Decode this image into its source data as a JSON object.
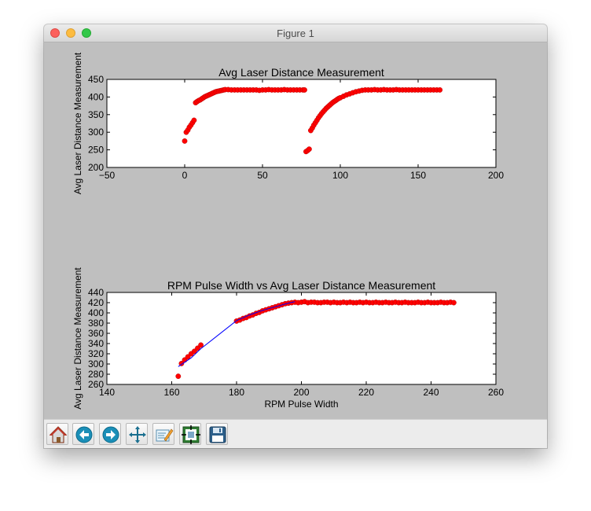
{
  "window": {
    "title": "Figure 1"
  },
  "toolbar": {
    "buttons": [
      {
        "name": "home-button",
        "icon": "home-icon"
      },
      {
        "name": "back-button",
        "icon": "back-arrow-icon"
      },
      {
        "name": "forward-button",
        "icon": "forward-arrow-icon"
      },
      {
        "name": "pan-button",
        "icon": "pan-move-icon"
      },
      {
        "name": "edit-curves-button",
        "icon": "edit-pencil-icon"
      },
      {
        "name": "configure-subplots-button",
        "icon": "subplots-icon"
      },
      {
        "name": "save-button",
        "icon": "floppy-disk-icon"
      }
    ]
  },
  "colors": {
    "scatter": "#ff0000",
    "line": "#0000ff",
    "figure_bg": "#bfbfbf",
    "axes_bg": "#ffffff"
  },
  "chart_data": [
    {
      "type": "scatter",
      "title": "Avg Laser Distance Measurement",
      "xlabel": "",
      "ylabel": "Avg Laser Distance Measurement",
      "xlim": [
        -50,
        200
      ],
      "ylim": [
        200,
        450
      ],
      "xticks": [
        -50,
        0,
        50,
        100,
        150,
        200
      ],
      "yticks": [
        200,
        250,
        300,
        350,
        400,
        450
      ],
      "xtick_labels": [
        "−50",
        "0",
        "50",
        "100",
        "150",
        "200"
      ],
      "ytick_labels": [
        "200",
        "250",
        "300",
        "350",
        "400",
        "450"
      ],
      "grid": false,
      "series": [
        {
          "name": "",
          "x": [
            0,
            1,
            2,
            3,
            4,
            5,
            6,
            7,
            8,
            9,
            10,
            11,
            12,
            13,
            14,
            15,
            16,
            17,
            18,
            19,
            20,
            21,
            22,
            23,
            24,
            25,
            26,
            28,
            30,
            32,
            34,
            36,
            38,
            40,
            42,
            44,
            46,
            48,
            50,
            52,
            54,
            56,
            58,
            60,
            62,
            64,
            66,
            68,
            70,
            72,
            74,
            76,
            77,
            78,
            79,
            80,
            81,
            82,
            83,
            84,
            85,
            86,
            87,
            88,
            89,
            90,
            91,
            92,
            93,
            94,
            95,
            96,
            97,
            98,
            99,
            100,
            102,
            104,
            106,
            108,
            110,
            112,
            114,
            116,
            118,
            120,
            122,
            124,
            126,
            128,
            130,
            132,
            134,
            136,
            138,
            140,
            142,
            144,
            146,
            148,
            150,
            152,
            154,
            156,
            158,
            160,
            162,
            164
          ],
          "y": [
            275,
            300,
            306,
            314,
            320,
            327,
            334,
            384,
            387,
            390,
            392,
            395,
            398,
            401,
            403,
            405,
            407,
            409,
            411,
            413,
            415,
            416,
            417,
            418,
            419,
            420,
            421,
            421,
            420,
            420,
            420,
            420,
            420,
            420,
            420,
            420,
            420,
            419,
            420,
            420,
            421,
            420,
            420,
            420,
            420,
            421,
            420,
            420,
            420,
            420,
            420,
            420,
            420,
            245,
            248,
            252,
            305,
            312,
            320,
            327,
            334,
            341,
            347,
            353,
            358,
            363,
            368,
            372,
            376,
            380,
            384,
            387,
            390,
            393,
            396,
            398,
            402,
            406,
            409,
            412,
            415,
            417,
            419,
            420,
            420,
            420,
            421,
            420,
            420,
            421,
            420,
            420,
            420,
            421,
            420,
            420,
            420,
            420,
            420,
            420,
            420,
            420,
            420,
            420,
            420,
            420,
            420,
            420
          ]
        }
      ]
    },
    {
      "type": "scatter",
      "title": "RPM Pulse Width vs Avg Laser Distance Measurement",
      "xlabel": "RPM Pulse Width",
      "ylabel": "Avg Laser Distance Measurement",
      "xlim": [
        140,
        260
      ],
      "ylim": [
        260,
        440
      ],
      "xticks": [
        140,
        160,
        180,
        200,
        220,
        240,
        260
      ],
      "yticks": [
        260,
        280,
        300,
        320,
        340,
        360,
        380,
        400,
        420,
        440
      ],
      "xtick_labels": [
        "140",
        "160",
        "180",
        "200",
        "220",
        "240",
        "260"
      ],
      "ytick_labels": [
        "260",
        "280",
        "300",
        "320",
        "340",
        "360",
        "380",
        "400",
        "420",
        "440"
      ],
      "grid": false,
      "series": [
        {
          "name": "",
          "x": [
            162,
            163,
            164,
            165,
            166,
            167,
            168,
            169,
            180,
            181,
            182,
            183,
            184,
            185,
            186,
            187,
            188,
            189,
            190,
            191,
            192,
            193,
            194,
            195,
            196,
            197,
            198,
            199,
            200,
            201,
            202,
            203,
            204,
            205,
            206,
            207,
            208,
            209,
            210,
            211,
            212,
            213,
            214,
            215,
            216,
            217,
            218,
            219,
            220,
            221,
            222,
            223,
            224,
            225,
            226,
            227,
            228,
            229,
            230,
            231,
            232,
            233,
            234,
            235,
            236,
            237,
            238,
            239,
            240,
            241,
            242,
            243,
            244,
            245,
            246,
            247
          ],
          "y": [
            276,
            301,
            308,
            314,
            320,
            325,
            331,
            337,
            384,
            386,
            389,
            391,
            394,
            396,
            399,
            401,
            404,
            406,
            408,
            410,
            412,
            414,
            416,
            418,
            419,
            420,
            421,
            420,
            421,
            422,
            420,
            421,
            421,
            420,
            420,
            421,
            421,
            420,
            421,
            420,
            420,
            421,
            420,
            421,
            420,
            420,
            421,
            420,
            421,
            420,
            420,
            421,
            420,
            420,
            421,
            420,
            420,
            421,
            420,
            420,
            421,
            420,
            420,
            420,
            421,
            420,
            420,
            421,
            420,
            420,
            420,
            421,
            420,
            420,
            421,
            420
          ]
        },
        {
          "name": "",
          "type": "line",
          "x": [
            162,
            166,
            169,
            172,
            176,
            180,
            184,
            188,
            192,
            196,
            198
          ],
          "y": [
            295,
            312,
            330,
            345,
            365,
            385,
            396,
            405,
            412,
            419,
            422
          ]
        }
      ]
    }
  ]
}
